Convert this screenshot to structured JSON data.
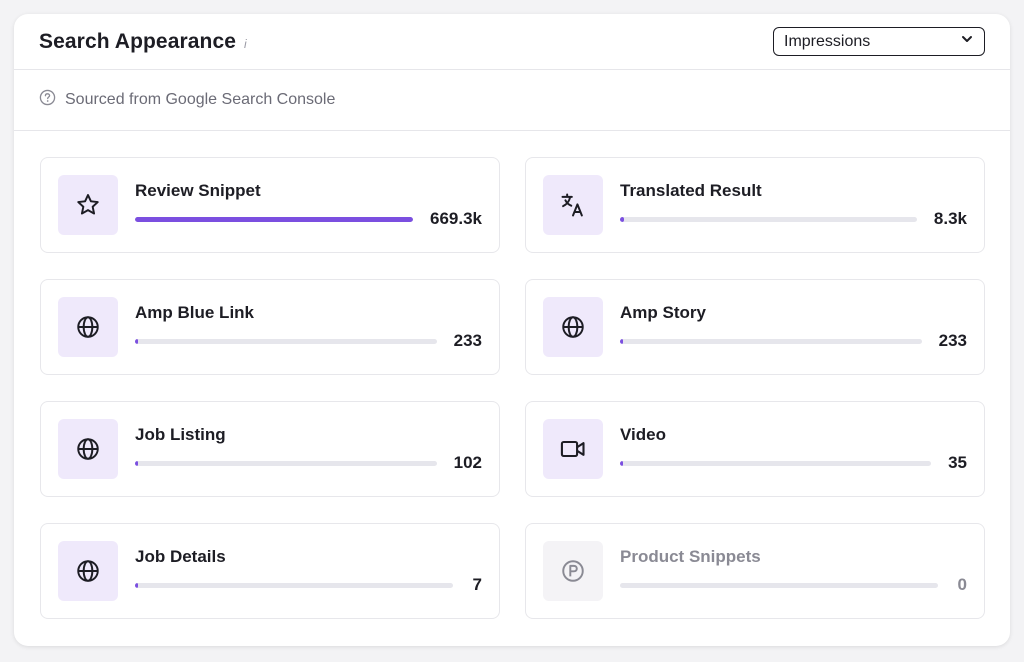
{
  "header": {
    "title": "Search Appearance",
    "info_glyph": "i"
  },
  "metric_select": {
    "selected": "Impressions"
  },
  "source_note": "Sourced from Google Search Console",
  "colors": {
    "accent": "#7b4fe0",
    "icon_bg": "#efe9fb",
    "track": "#e6e6ec"
  },
  "items": [
    {
      "label": "Review Snippet",
      "value": "669.3k",
      "fraction": 1.0,
      "icon": "star-icon"
    },
    {
      "label": "Translated Result",
      "value": "8.3k",
      "fraction": 0.0124,
      "icon": "translate-icon"
    },
    {
      "label": "Amp Blue Link",
      "value": "233",
      "fraction": 0.00035,
      "icon": "globe-icon"
    },
    {
      "label": "Amp Story",
      "value": "233",
      "fraction": 0.00035,
      "icon": "globe-icon"
    },
    {
      "label": "Job Listing",
      "value": "102",
      "fraction": 0.00015,
      "icon": "globe-icon"
    },
    {
      "label": "Video",
      "value": "35",
      "fraction": 5e-05,
      "icon": "video-camera-icon"
    },
    {
      "label": "Job Details",
      "value": "7",
      "fraction": 1e-05,
      "icon": "globe-icon"
    },
    {
      "label": "Product Snippets",
      "value": "0",
      "fraction": 0,
      "icon": "product-p-icon",
      "muted": true
    }
  ]
}
